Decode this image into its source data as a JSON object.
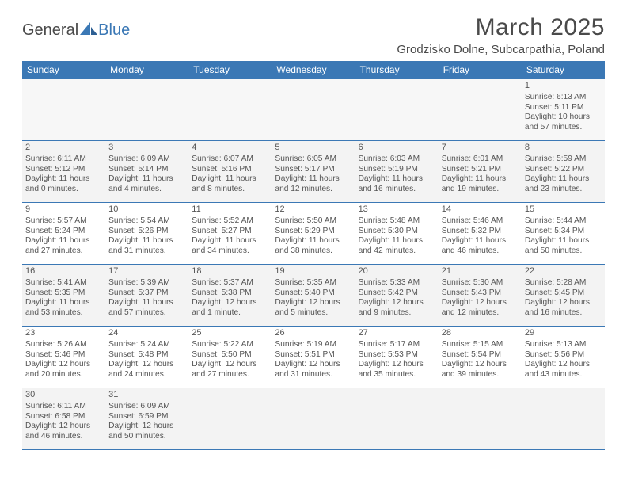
{
  "brand": {
    "part1": "General",
    "part2": "Blue"
  },
  "title": "March 2025",
  "location": "Grodzisko Dolne, Subcarpathia, Poland",
  "colors": {
    "header_bg": "#3b78b5",
    "header_text": "#ffffff",
    "cell_border": "#3b78b5",
    "alt_row_bg": "#f3f3f3",
    "text": "#555555",
    "background": "#ffffff"
  },
  "typography": {
    "title_fontsize_pt": 22,
    "location_fontsize_pt": 11,
    "day_header_fontsize_pt": 9,
    "cell_fontsize_pt": 7.5,
    "font_family": "Arial"
  },
  "day_headers": [
    "Sunday",
    "Monday",
    "Tuesday",
    "Wednesday",
    "Thursday",
    "Friday",
    "Saturday"
  ],
  "weeks": [
    [
      null,
      null,
      null,
      null,
      null,
      null,
      {
        "n": "1",
        "sunrise": "Sunrise: 6:13 AM",
        "sunset": "Sunset: 5:11 PM",
        "day1": "Daylight: 10 hours",
        "day2": "and 57 minutes."
      }
    ],
    [
      {
        "n": "2",
        "sunrise": "Sunrise: 6:11 AM",
        "sunset": "Sunset: 5:12 PM",
        "day1": "Daylight: 11 hours",
        "day2": "and 0 minutes."
      },
      {
        "n": "3",
        "sunrise": "Sunrise: 6:09 AM",
        "sunset": "Sunset: 5:14 PM",
        "day1": "Daylight: 11 hours",
        "day2": "and 4 minutes."
      },
      {
        "n": "4",
        "sunrise": "Sunrise: 6:07 AM",
        "sunset": "Sunset: 5:16 PM",
        "day1": "Daylight: 11 hours",
        "day2": "and 8 minutes."
      },
      {
        "n": "5",
        "sunrise": "Sunrise: 6:05 AM",
        "sunset": "Sunset: 5:17 PM",
        "day1": "Daylight: 11 hours",
        "day2": "and 12 minutes."
      },
      {
        "n": "6",
        "sunrise": "Sunrise: 6:03 AM",
        "sunset": "Sunset: 5:19 PM",
        "day1": "Daylight: 11 hours",
        "day2": "and 16 minutes."
      },
      {
        "n": "7",
        "sunrise": "Sunrise: 6:01 AM",
        "sunset": "Sunset: 5:21 PM",
        "day1": "Daylight: 11 hours",
        "day2": "and 19 minutes."
      },
      {
        "n": "8",
        "sunrise": "Sunrise: 5:59 AM",
        "sunset": "Sunset: 5:22 PM",
        "day1": "Daylight: 11 hours",
        "day2": "and 23 minutes."
      }
    ],
    [
      {
        "n": "9",
        "sunrise": "Sunrise: 5:57 AM",
        "sunset": "Sunset: 5:24 PM",
        "day1": "Daylight: 11 hours",
        "day2": "and 27 minutes."
      },
      {
        "n": "10",
        "sunrise": "Sunrise: 5:54 AM",
        "sunset": "Sunset: 5:26 PM",
        "day1": "Daylight: 11 hours",
        "day2": "and 31 minutes."
      },
      {
        "n": "11",
        "sunrise": "Sunrise: 5:52 AM",
        "sunset": "Sunset: 5:27 PM",
        "day1": "Daylight: 11 hours",
        "day2": "and 34 minutes."
      },
      {
        "n": "12",
        "sunrise": "Sunrise: 5:50 AM",
        "sunset": "Sunset: 5:29 PM",
        "day1": "Daylight: 11 hours",
        "day2": "and 38 minutes."
      },
      {
        "n": "13",
        "sunrise": "Sunrise: 5:48 AM",
        "sunset": "Sunset: 5:30 PM",
        "day1": "Daylight: 11 hours",
        "day2": "and 42 minutes."
      },
      {
        "n": "14",
        "sunrise": "Sunrise: 5:46 AM",
        "sunset": "Sunset: 5:32 PM",
        "day1": "Daylight: 11 hours",
        "day2": "and 46 minutes."
      },
      {
        "n": "15",
        "sunrise": "Sunrise: 5:44 AM",
        "sunset": "Sunset: 5:34 PM",
        "day1": "Daylight: 11 hours",
        "day2": "and 50 minutes."
      }
    ],
    [
      {
        "n": "16",
        "sunrise": "Sunrise: 5:41 AM",
        "sunset": "Sunset: 5:35 PM",
        "day1": "Daylight: 11 hours",
        "day2": "and 53 minutes."
      },
      {
        "n": "17",
        "sunrise": "Sunrise: 5:39 AM",
        "sunset": "Sunset: 5:37 PM",
        "day1": "Daylight: 11 hours",
        "day2": "and 57 minutes."
      },
      {
        "n": "18",
        "sunrise": "Sunrise: 5:37 AM",
        "sunset": "Sunset: 5:38 PM",
        "day1": "Daylight: 12 hours",
        "day2": "and 1 minute."
      },
      {
        "n": "19",
        "sunrise": "Sunrise: 5:35 AM",
        "sunset": "Sunset: 5:40 PM",
        "day1": "Daylight: 12 hours",
        "day2": "and 5 minutes."
      },
      {
        "n": "20",
        "sunrise": "Sunrise: 5:33 AM",
        "sunset": "Sunset: 5:42 PM",
        "day1": "Daylight: 12 hours",
        "day2": "and 9 minutes."
      },
      {
        "n": "21",
        "sunrise": "Sunrise: 5:30 AM",
        "sunset": "Sunset: 5:43 PM",
        "day1": "Daylight: 12 hours",
        "day2": "and 12 minutes."
      },
      {
        "n": "22",
        "sunrise": "Sunrise: 5:28 AM",
        "sunset": "Sunset: 5:45 PM",
        "day1": "Daylight: 12 hours",
        "day2": "and 16 minutes."
      }
    ],
    [
      {
        "n": "23",
        "sunrise": "Sunrise: 5:26 AM",
        "sunset": "Sunset: 5:46 PM",
        "day1": "Daylight: 12 hours",
        "day2": "and 20 minutes."
      },
      {
        "n": "24",
        "sunrise": "Sunrise: 5:24 AM",
        "sunset": "Sunset: 5:48 PM",
        "day1": "Daylight: 12 hours",
        "day2": "and 24 minutes."
      },
      {
        "n": "25",
        "sunrise": "Sunrise: 5:22 AM",
        "sunset": "Sunset: 5:50 PM",
        "day1": "Daylight: 12 hours",
        "day2": "and 27 minutes."
      },
      {
        "n": "26",
        "sunrise": "Sunrise: 5:19 AM",
        "sunset": "Sunset: 5:51 PM",
        "day1": "Daylight: 12 hours",
        "day2": "and 31 minutes."
      },
      {
        "n": "27",
        "sunrise": "Sunrise: 5:17 AM",
        "sunset": "Sunset: 5:53 PM",
        "day1": "Daylight: 12 hours",
        "day2": "and 35 minutes."
      },
      {
        "n": "28",
        "sunrise": "Sunrise: 5:15 AM",
        "sunset": "Sunset: 5:54 PM",
        "day1": "Daylight: 12 hours",
        "day2": "and 39 minutes."
      },
      {
        "n": "29",
        "sunrise": "Sunrise: 5:13 AM",
        "sunset": "Sunset: 5:56 PM",
        "day1": "Daylight: 12 hours",
        "day2": "and 43 minutes."
      }
    ],
    [
      {
        "n": "30",
        "sunrise": "Sunrise: 6:11 AM",
        "sunset": "Sunset: 6:58 PM",
        "day1": "Daylight: 12 hours",
        "day2": "and 46 minutes."
      },
      {
        "n": "31",
        "sunrise": "Sunrise: 6:09 AM",
        "sunset": "Sunset: 6:59 PM",
        "day1": "Daylight: 12 hours",
        "day2": "and 50 minutes."
      },
      null,
      null,
      null,
      null,
      null
    ]
  ]
}
